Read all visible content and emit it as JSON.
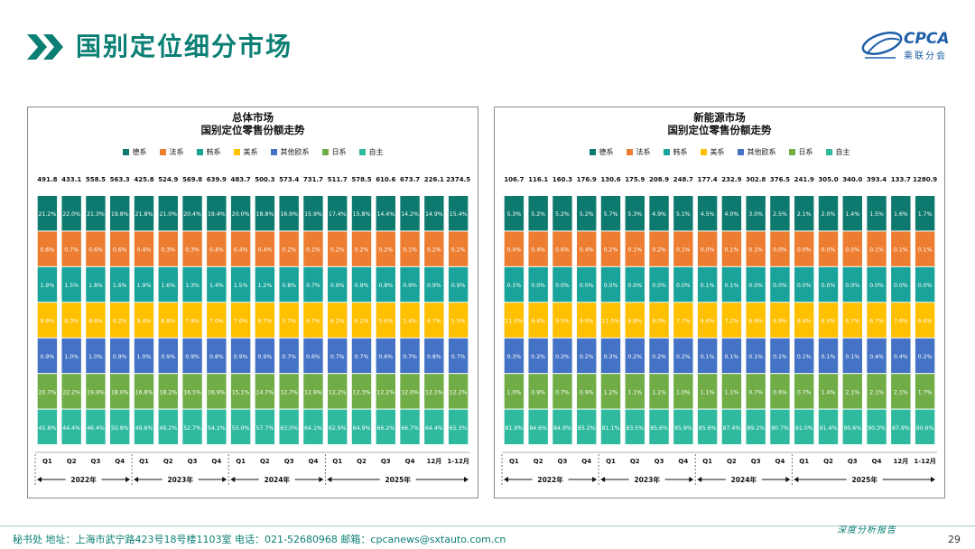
{
  "page": {
    "title": "国别定位细分市场",
    "logo_text": "CPCA",
    "logo_sub": "乘联分会",
    "footer": "秘书处   地址：上海市武宁路423号18号楼1103室  电话：021-52680968   邮箱：cpcanews@sxtauto.com.cn",
    "footer_tag": "深度分析报告",
    "page_number": "29"
  },
  "colors": {
    "brand": "#0b7f74",
    "series": [
      "#0e7a6f",
      "#ed7d31",
      "#1aa39a",
      "#ffc000",
      "#4472c4",
      "#70ad47",
      "#2fba9f"
    ]
  },
  "chart_data": [
    {
      "type": "bar",
      "stacked": "100%",
      "title": "总体市场",
      "subtitle": "国别定位零售份额走势",
      "categories": [
        "Q1",
        "Q2",
        "Q3",
        "Q4",
        "Q1",
        "Q2",
        "Q3",
        "Q4",
        "Q1",
        "Q2",
        "Q3",
        "Q4",
        "Q1",
        "Q2",
        "Q3",
        "Q4",
        "12月",
        "1-12月"
      ],
      "totals": [
        "491.8",
        "433.1",
        "558.5",
        "563.3",
        "425.8",
        "524.9",
        "569.8",
        "639.9",
        "483.7",
        "500.3",
        "573.4",
        "731.7",
        "511.7",
        "578.5",
        "610.6",
        "673.7",
        "226.1",
        "2374.5"
      ],
      "year_groups": [
        {
          "label": "2022年",
          "start": 0,
          "end": 3
        },
        {
          "label": "2023年",
          "start": 4,
          "end": 7
        },
        {
          "label": "2024年",
          "start": 8,
          "end": 11
        },
        {
          "label": "2025年",
          "start": 12,
          "end": 17
        }
      ],
      "series": [
        {
          "name": "德系",
          "values": [
            "21.2%",
            "22.0%",
            "21.3%",
            "19.8%",
            "21.8%",
            "21.0%",
            "20.4%",
            "19.4%",
            "20.0%",
            "18.8%",
            "16.9%",
            "15.9%",
            "17.4%",
            "15.8%",
            "14.4%",
            "14.2%",
            "14.9%",
            "15.4%"
          ]
        },
        {
          "name": "法系",
          "values": [
            "0.6%",
            "0.7%",
            "0.6%",
            "0.6%",
            "0.4%",
            "0.3%",
            "0.3%",
            "0.4%",
            "0.4%",
            "0.4%",
            "0.2%",
            "0.1%",
            "0.2%",
            "0.2%",
            "0.2%",
            "0.1%",
            "0.2%",
            "0.2%"
          ]
        },
        {
          "name": "韩系",
          "values": [
            "1.9%",
            "1.5%",
            "1.8%",
            "1.6%",
            "1.9%",
            "1.6%",
            "1.3%",
            "1.4%",
            "1.5%",
            "1.2%",
            "0.8%",
            "0.7%",
            "0.9%",
            "0.9%",
            "0.8%",
            "0.9%",
            "0.9%",
            "0.9%"
          ]
        },
        {
          "name": "美系",
          "values": [
            "8.9%",
            "8.3%",
            "8.6%",
            "9.2%",
            "8.4%",
            "8.8%",
            "7.9%",
            "7.0%",
            "7.0%",
            "6.7%",
            "5.7%",
            "6.7%",
            "6.2%",
            "6.2%",
            "5.6%",
            "5.4%",
            "6.7%",
            "5.5%"
          ]
        },
        {
          "name": "其他欧系",
          "values": [
            "0.9%",
            "1.0%",
            "1.0%",
            "0.9%",
            "1.0%",
            "0.9%",
            "0.9%",
            "0.8%",
            "0.9%",
            "0.9%",
            "0.7%",
            "0.6%",
            "0.7%",
            "0.7%",
            "0.6%",
            "0.7%",
            "0.8%",
            "0.7%"
          ]
        },
        {
          "name": "日系",
          "values": [
            "20.7%",
            "22.2%",
            "19.9%",
            "18.0%",
            "16.8%",
            "18.2%",
            "16.5%",
            "16.9%",
            "15.1%",
            "14.7%",
            "12.7%",
            "12.9%",
            "12.2%",
            "12.3%",
            "12.2%",
            "12.0%",
            "12.1%",
            "12.2%"
          ]
        },
        {
          "name": "自主",
          "values": [
            "45.8%",
            "44.4%",
            "46.4%",
            "50.8%",
            "49.6%",
            "49.2%",
            "52.7%",
            "54.1%",
            "55.0%",
            "57.7%",
            "63.0%",
            "64.1%",
            "62.9%",
            "64.9%",
            "66.2%",
            "66.7%",
            "64.4%",
            "65.3%"
          ]
        }
      ]
    },
    {
      "type": "bar",
      "stacked": "100%",
      "title": "新能源市场",
      "subtitle": "国别定位零售份额走势",
      "categories": [
        "Q1",
        "Q2",
        "Q3",
        "Q4",
        "Q1",
        "Q2",
        "Q3",
        "Q4",
        "Q1",
        "Q2",
        "Q3",
        "Q4",
        "Q1",
        "Q2",
        "Q3",
        "Q4",
        "12月",
        "1-12月"
      ],
      "totals": [
        "106.7",
        "116.1",
        "160.3",
        "176.9",
        "130.6",
        "175.9",
        "208.9",
        "248.7",
        "177.4",
        "232.9",
        "302.8",
        "376.5",
        "241.9",
        "305.0",
        "340.0",
        "393.4",
        "133.7",
        "1280.9"
      ],
      "year_groups": [
        {
          "label": "2022年",
          "start": 0,
          "end": 3
        },
        {
          "label": "2023年",
          "start": 4,
          "end": 7
        },
        {
          "label": "2024年",
          "start": 8,
          "end": 11
        },
        {
          "label": "2025年",
          "start": 12,
          "end": 17
        }
      ],
      "series": [
        {
          "name": "德系",
          "values": [
            "5.3%",
            "5.2%",
            "5.2%",
            "5.2%",
            "5.7%",
            "5.3%",
            "4.9%",
            "5.1%",
            "4.5%",
            "4.0%",
            "3.0%",
            "2.5%",
            "2.1%",
            "2.0%",
            "1.4%",
            "1.5%",
            "1.6%",
            "1.7%"
          ]
        },
        {
          "name": "法系",
          "values": [
            "0.4%",
            "0.4%",
            "0.6%",
            "0.4%",
            "0.2%",
            "0.1%",
            "0.2%",
            "0.1%",
            "0.0%",
            "0.1%",
            "0.1%",
            "0.0%",
            "0.0%",
            "0.0%",
            "0.0%",
            "0.1%",
            "0.1%",
            "0.1%"
          ]
        },
        {
          "name": "韩系",
          "values": [
            "0.1%",
            "0.0%",
            "0.0%",
            "0.0%",
            "0.0%",
            "0.0%",
            "0.0%",
            "0.0%",
            "0.1%",
            "0.1%",
            "0.0%",
            "0.0%",
            "0.0%",
            "0.0%",
            "0.0%",
            "0.0%",
            "0.0%",
            "0.0%"
          ]
        },
        {
          "name": "美系",
          "values": [
            "11.0%",
            "9.4%",
            "9.5%",
            "9.0%",
            "11.5%",
            "9.8%",
            "9.0%",
            "7.7%",
            "9.6%",
            "7.2%",
            "6.9%",
            "6.9%",
            "6.6%",
            "6.0%",
            "6.7%",
            "6.7%",
            "7.6%",
            "6.6%"
          ]
        },
        {
          "name": "其他欧系",
          "values": [
            "0.3%",
            "0.2%",
            "0.2%",
            "0.2%",
            "0.3%",
            "0.2%",
            "0.2%",
            "0.2%",
            "0.1%",
            "0.1%",
            "0.1%",
            "0.1%",
            "0.1%",
            "0.1%",
            "0.1%",
            "0.4%",
            "0.4%",
            "0.2%"
          ]
        },
        {
          "name": "日系",
          "values": [
            "1.0%",
            "0.9%",
            "0.7%",
            "0.9%",
            "1.2%",
            "1.1%",
            "1.1%",
            "1.0%",
            "1.1%",
            "1.1%",
            "0.7%",
            "0.6%",
            "0.7%",
            "1.4%",
            "2.1%",
            "2.1%",
            "2.1%",
            "1.7%"
          ]
        },
        {
          "name": "自主",
          "values": [
            "81.9%",
            "84.6%",
            "84.9%",
            "85.2%",
            "81.1%",
            "83.5%",
            "85.6%",
            "85.9%",
            "85.6%",
            "87.4%",
            "89.1%",
            "90.7%",
            "91.0%",
            "91.4%",
            "90.6%",
            "90.3%",
            "87.9%",
            "90.6%"
          ]
        }
      ]
    }
  ]
}
